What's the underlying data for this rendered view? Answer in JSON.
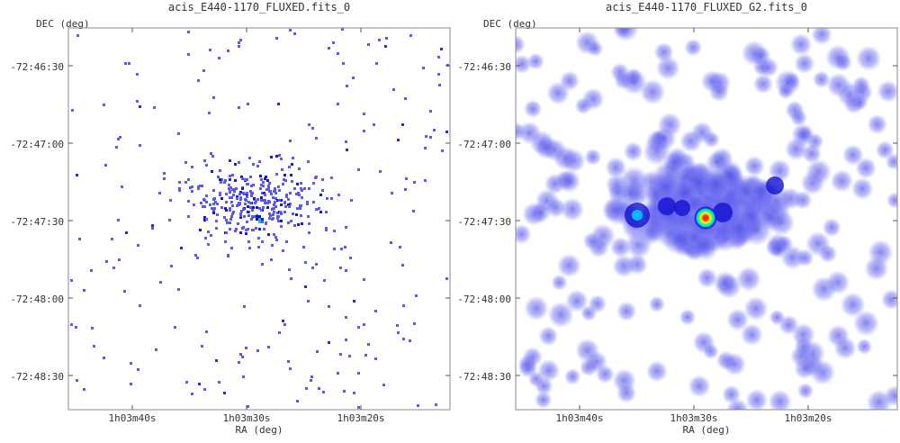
{
  "chart_data": [
    {
      "type": "heatmap",
      "title": "acis_E440-1170_FLUXED.fits_0",
      "xlabel": "RA (deg)",
      "ylabel": "DEC (deg)",
      "x_ticks": [
        "1h03m40s",
        "1h03m30s",
        "1h03m20s"
      ],
      "y_ticks": [
        "-72:46:30",
        "-72:47:00",
        "-72:47:30",
        "-72:48:00",
        "-72:48:30"
      ],
      "rendering": "sparse photon event map, blue pixels on white, brightest source near center",
      "colormap": [
        "#ffffff",
        "#5a5af0",
        "#1818d0",
        "#00d0ff",
        "#30ff60",
        "#ffff00",
        "#ff3000"
      ]
    },
    {
      "type": "heatmap",
      "title": "acis_E440-1170_FLUXED_G2.fits_0",
      "xlabel": "RA (deg)",
      "ylabel": "DEC (deg)",
      "x_ticks": [
        "1h03m40s",
        "1h03m30s",
        "1h03m20s"
      ],
      "y_ticks": [
        "-72:46:30",
        "-72:47:00",
        "-72:47:30",
        "-72:48:00",
        "-72:48:30"
      ],
      "rendering": "Gaussian-smoothed event map, diffuse blue emission with bright point source near center",
      "colormap": [
        "#ffffff",
        "#c8c8ff",
        "#6060f0",
        "#1010d0",
        "#00d0ff",
        "#30ff60",
        "#ffff00",
        "#ff3000"
      ]
    }
  ]
}
